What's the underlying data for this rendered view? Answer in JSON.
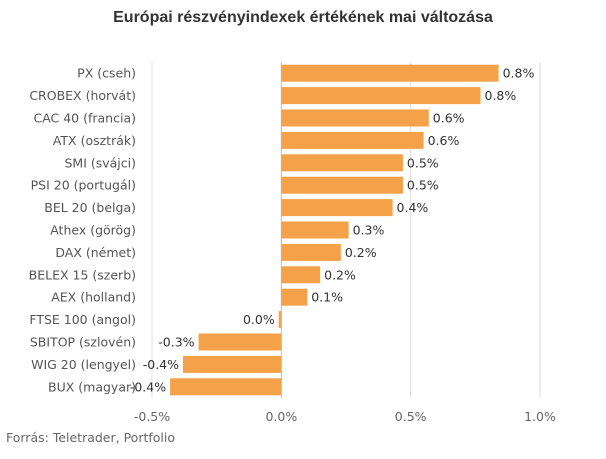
{
  "chart_data": {
    "type": "bar",
    "orientation": "horizontal",
    "title": "Európai részvényindexek értékének mai változása",
    "source": "Forrás: Teletrader, Portfolio",
    "categories": [
      "PX (cseh)",
      "CROBEX (horvát)",
      "CAC 40 (francia)",
      "ATX (osztrák)",
      "SMI (svájci)",
      "PSI 20 (portugál)",
      "BEL 20 (belga)",
      "Athex (görög)",
      "DAX (német)",
      "BELEX 15 (szerb)",
      "AEX (holland)",
      "FTSE 100 (angol)",
      "SBITOP (szlovén)",
      "WIG 20 (lengyel)",
      "BUX (magyar)"
    ],
    "values": [
      0.84,
      0.77,
      0.57,
      0.55,
      0.47,
      0.47,
      0.43,
      0.26,
      0.23,
      0.15,
      0.1,
      -0.01,
      -0.32,
      -0.38,
      -0.43
    ],
    "value_labels": [
      "0.8%",
      "0.8%",
      "0.6%",
      "0.6%",
      "0.5%",
      "0.5%",
      "0.4%",
      "0.3%",
      "0.2%",
      "0.2%",
      "0.1%",
      "0.0%",
      "-0.3%",
      "-0.4%",
      "-0.4%"
    ],
    "xlim": [
      -0.5,
      1.0
    ],
    "xticks": [
      -0.5,
      0,
      0.5,
      1.0
    ],
    "xtick_labels": [
      "-0.5%",
      "0.0%",
      "0.5%",
      "1.0%"
    ],
    "grid": true,
    "bar_color": "#f4a14a",
    "grid_color": "#dddddd"
  }
}
